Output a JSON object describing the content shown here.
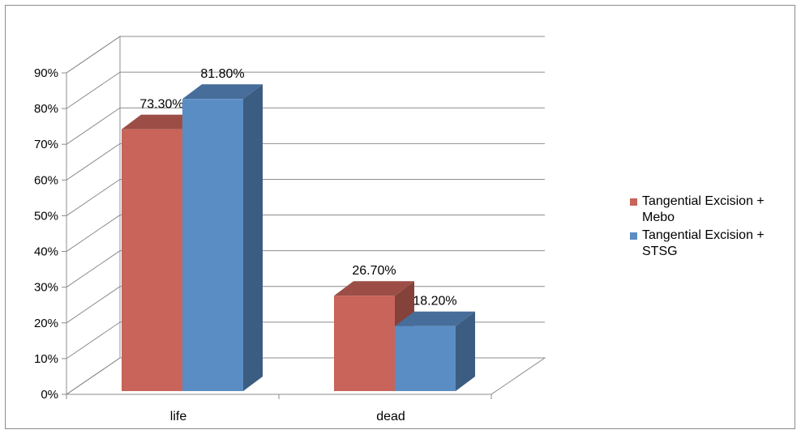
{
  "chart_data": {
    "type": "bar",
    "categories": [
      "life",
      "dead"
    ],
    "series": [
      {
        "name": "Tangential Excision + Mebo",
        "values": [
          73.3,
          26.7
        ],
        "labels": [
          "73.30%",
          "26.70%"
        ],
        "color": "#c8645a"
      },
      {
        "name": "Tangential Excision + STSG",
        "values": [
          81.8,
          18.2
        ],
        "labels": [
          "81.80%",
          "18.20%"
        ],
        "color": "#5b8dc5"
      }
    ],
    "title": "",
    "xlabel": "",
    "ylabel": "",
    "ylim": [
      0,
      90
    ],
    "yticks": [
      "0%",
      "10%",
      "20%",
      "30%",
      "40%",
      "50%",
      "60%",
      "70%",
      "80%",
      "90%"
    ],
    "grid": true,
    "legend_position": "right",
    "style": "3d-clustered-column"
  }
}
